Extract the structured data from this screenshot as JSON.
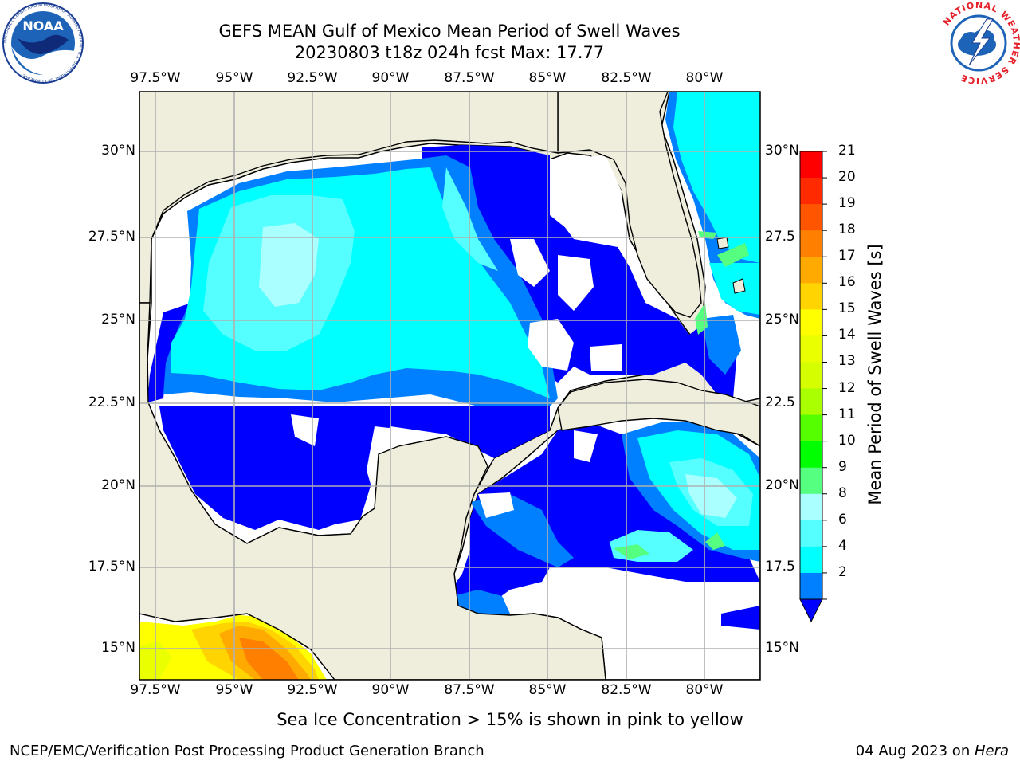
{
  "title": {
    "line1": "GEFS MEAN Gulf of Mexico Mean Period of Swell Waves",
    "line2": "20230803 t18z 024h fcst   Max: 17.77"
  },
  "logos": {
    "noaa": "NOAA",
    "noaa_ring": "NATIONAL OCEANIC AND ATMOSPHERIC ADMINISTRATION · U.S. DEPARTMENT OF COMMERCE",
    "nws_ring": "NATIONAL WEATHER SERVICE"
  },
  "map": {
    "lon_labels": [
      "97.5°W",
      "95°W",
      "92.5°W",
      "90°W",
      "87.5°W",
      "85°W",
      "82.5°W",
      "80°W"
    ],
    "lat_labels_left": [
      "30°N",
      "27.5°N",
      "25°N",
      "22.5°N",
      "20°N",
      "17.5°N",
      "15°N"
    ],
    "lat_labels_right": [
      "30°N",
      "27.5",
      "25°N",
      "22.5",
      "20°N",
      "17.5",
      "15°N"
    ],
    "colors": {
      "land": "#efeedd",
      "ocean_mask": "#ffffff",
      "grid": "#b0b0b0",
      "coast": "#000000"
    }
  },
  "colorbar": {
    "title": "Mean Period of Swell Waves [s]",
    "ticks": [
      "21",
      "20",
      "19",
      "18",
      "17",
      "16",
      "15",
      "14",
      "13",
      "12",
      "11",
      "10",
      "9",
      "8",
      "6",
      "4",
      "2"
    ],
    "colors": [
      "#ff0000",
      "#ff2a00",
      "#ff5500",
      "#ff8000",
      "#ffaa00",
      "#ffd400",
      "#ffff00",
      "#eaff00",
      "#d5ff00",
      "#aaff00",
      "#55ff00",
      "#00ff00",
      "#55ff80",
      "#aaffff",
      "#55ffff",
      "#00ffff",
      "#0080ff"
    ],
    "underflow": "#0000ff"
  },
  "subtitle": "Sea Ice Concentration > 15% is shown in pink to yellow",
  "footer": {
    "left": "NCEP/EMC/Verification Post Processing Product Generation Branch",
    "right_prefix": "04 Aug 2023 on ",
    "right_host": "Hera"
  }
}
